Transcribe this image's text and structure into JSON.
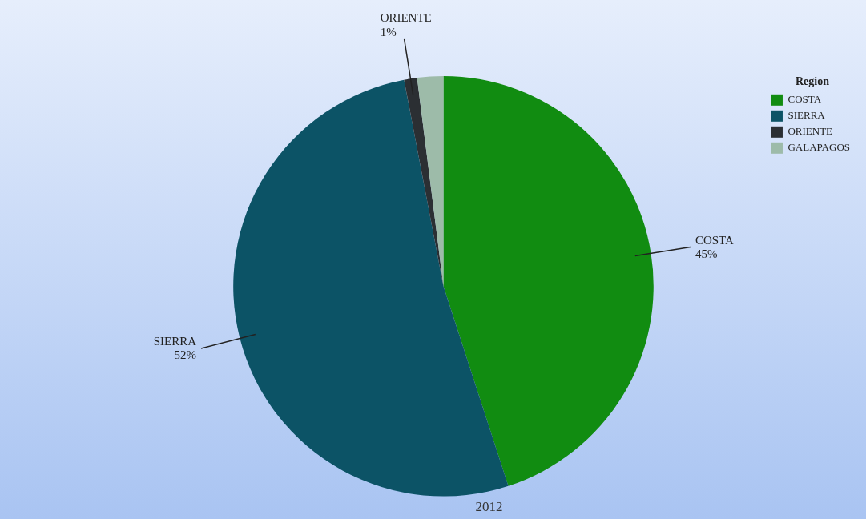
{
  "chart_data": {
    "type": "pie",
    "xlabel": "2012",
    "legend_title": "Region",
    "legend": "top right",
    "categories": [
      "COSTA",
      "SIERRA",
      "ORIENTE",
      "GALAPAGOS"
    ],
    "values": [
      45,
      52,
      1,
      2
    ],
    "colors": [
      "#118c11",
      "#0c5366",
      "#2b2f33",
      "#9dbba9"
    ],
    "value_labels": [
      "45%",
      "52%",
      "1%",
      null
    ]
  }
}
